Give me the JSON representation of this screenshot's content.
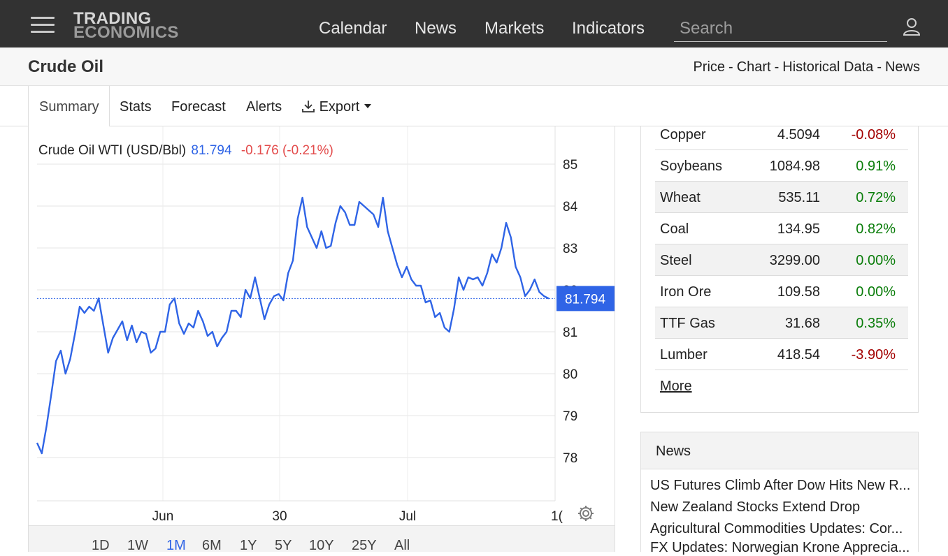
{
  "header": {
    "logo_line1": "TRADING",
    "logo_line2": "ECONOMICS",
    "nav": [
      "Calendar",
      "News",
      "Markets",
      "Indicators"
    ],
    "search_placeholder": "Search"
  },
  "page": {
    "title": "Crude Oil",
    "breadcrumbs": [
      "Price",
      "Chart",
      "Historical Data",
      "News"
    ]
  },
  "tabs": [
    "Summary",
    "Stats",
    "Forecast",
    "Alerts",
    "Export"
  ],
  "chart": {
    "series_label": "Crude Oil WTI (USD/Bbl)",
    "last_price": "81.794",
    "change": "-0.176 (-0.21%)",
    "price_tag": "81.794",
    "ranges": [
      "1D",
      "1W",
      "1M",
      "6M",
      "1Y",
      "5Y",
      "10Y",
      "25Y",
      "All"
    ],
    "active_range": "1M"
  },
  "chart_data": {
    "type": "line",
    "title": "Crude Oil WTI (USD/Bbl)",
    "y_ticks": [
      78,
      79,
      80,
      81,
      82,
      83,
      84,
      85
    ],
    "x_ticks": [
      "Jun",
      "30",
      "Jul",
      "1("
    ],
    "ylim": [
      76.9,
      85.3
    ],
    "line_color": "#2f64e6",
    "grid": true,
    "reference_line": 81.794,
    "series": [
      {
        "values": [
          78.35,
          78.1,
          78.75,
          79.5,
          80.3,
          80.55,
          80.0,
          80.35,
          80.95,
          81.6,
          81.45,
          81.6,
          81.5,
          81.8,
          81.15,
          80.5,
          80.85,
          81.05,
          81.25,
          80.8,
          81.15,
          80.75,
          81.0,
          80.95,
          80.5,
          80.6,
          81.0,
          81.0,
          81.65,
          81.8,
          81.2,
          80.95,
          81.2,
          81.1,
          81.5,
          81.25,
          80.9,
          81.0,
          80.65,
          80.85,
          81.0,
          81.5,
          81.5,
          81.35,
          82.0,
          81.8,
          82.3,
          81.8,
          81.3,
          81.65,
          81.85,
          81.9,
          81.75,
          82.4,
          82.7,
          83.7,
          84.2,
          83.5,
          83.25,
          83.0,
          83.4,
          83.0,
          83.05,
          83.6,
          84.0,
          83.85,
          83.55,
          83.55,
          84.1,
          84.0,
          83.9,
          83.8,
          83.5,
          84.2,
          83.4,
          83.0,
          82.6,
          82.3,
          82.55,
          82.25,
          82.1,
          82.1,
          81.7,
          81.75,
          81.35,
          81.45,
          81.1,
          81.0,
          81.55,
          82.3,
          82.0,
          82.3,
          82.25,
          82.3,
          82.1,
          82.4,
          82.85,
          82.65,
          83.0,
          83.6,
          83.25,
          82.55,
          82.3,
          81.85,
          82.0,
          82.25,
          81.95,
          81.85,
          81.794
        ]
      }
    ]
  },
  "commodities": [
    {
      "name": "Copper",
      "price": "4.5094",
      "change": "-0.08%",
      "dir": "neg"
    },
    {
      "name": "Soybeans",
      "price": "1084.98",
      "change": "0.91%",
      "dir": "pos"
    },
    {
      "name": "Wheat",
      "price": "535.11",
      "change": "0.72%",
      "dir": "pos"
    },
    {
      "name": "Coal",
      "price": "134.95",
      "change": "0.82%",
      "dir": "pos"
    },
    {
      "name": "Steel",
      "price": "3299.00",
      "change": "0.00%",
      "dir": "pos"
    },
    {
      "name": "Iron Ore",
      "price": "109.58",
      "change": "0.00%",
      "dir": "pos"
    },
    {
      "name": "TTF Gas",
      "price": "31.68",
      "change": "0.35%",
      "dir": "pos"
    },
    {
      "name": "Lumber",
      "price": "418.54",
      "change": "-3.90%",
      "dir": "neg"
    }
  ],
  "more_label": "More",
  "news": {
    "heading": "News",
    "items": [
      "US Futures Climb After Dow Hits New R...",
      "New Zealand Stocks Extend Drop",
      "Agricultural Commodities Updates: Cor...",
      "FX Updates: Norwegian Krone Apprecia..."
    ]
  },
  "colors": {
    "topbar": "#323232",
    "accent": "#2f64e6",
    "positive": "#0a7d0a",
    "negative": "#a30000",
    "change_red": "#e34b4b"
  }
}
